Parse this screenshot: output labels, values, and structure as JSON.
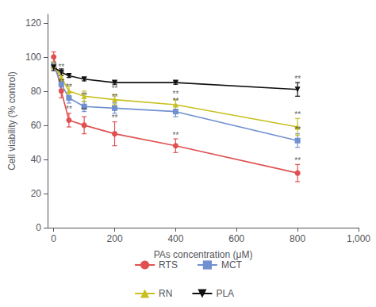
{
  "chart_data": {
    "type": "line",
    "xlabel": "PAs concentration (μM)",
    "ylabel": "Cell viability (% control)",
    "x": [
      0,
      25,
      50,
      100,
      200,
      400,
      800
    ],
    "series": [
      {
        "name": "RTS",
        "color": "#e05050",
        "marker": "circle",
        "values": [
          100,
          80,
          63,
          60,
          55,
          48,
          32
        ],
        "yerr": [
          3,
          4,
          4,
          5,
          7,
          4,
          5
        ]
      },
      {
        "name": "MCT",
        "color": "#7090d0",
        "marker": "square",
        "values": [
          95,
          84,
          76,
          71,
          70,
          68,
          51
        ],
        "yerr": [
          2,
          3,
          3,
          3,
          3,
          3,
          4
        ]
      },
      {
        "name": "RN",
        "color": "#c8c020",
        "marker": "triangle",
        "values": [
          95,
          88,
          80,
          77,
          75,
          72,
          59
        ],
        "yerr": [
          2,
          2,
          3,
          3,
          3,
          3,
          5
        ]
      },
      {
        "name": "PLA",
        "color": "#111111",
        "marker": "triangle_down",
        "values": [
          94,
          91,
          89,
          87,
          85,
          85,
          81
        ],
        "yerr": [
          2,
          2,
          1,
          1,
          1,
          1,
          4
        ]
      }
    ],
    "annotations": [
      {
        "text": "**",
        "x": 25,
        "y": 83
      },
      {
        "text": "**",
        "x": 50,
        "y": 67
      },
      {
        "text": "**",
        "x": 100,
        "y": 66
      },
      {
        "text": "**",
        "x": 200,
        "y": 62
      },
      {
        "text": "**",
        "x": 400,
        "y": 52
      },
      {
        "text": "**",
        "x": 800,
        "y": 37
      },
      {
        "text": "**",
        "x": 25,
        "y": 88
      },
      {
        "text": "**",
        "x": 50,
        "y": 80
      },
      {
        "text": "**",
        "x": 100,
        "y": 75
      },
      {
        "text": "**",
        "x": 200,
        "y": 74
      },
      {
        "text": "**",
        "x": 400,
        "y": 72
      },
      {
        "text": "**",
        "x": 800,
        "y": 55
      },
      {
        "text": "**",
        "x": 25,
        "y": 92
      },
      {
        "text": "**",
        "x": 200,
        "y": 79
      },
      {
        "text": "**",
        "x": 400,
        "y": 76
      },
      {
        "text": "**",
        "x": 800,
        "y": 64
      },
      {
        "text": "**",
        "x": 800,
        "y": 85
      }
    ],
    "xlim": [
      -20,
      1000
    ],
    "xticks": [
      0,
      200,
      400,
      600,
      800,
      1000
    ],
    "ylim": [
      0,
      125
    ],
    "yticks": [
      0,
      20,
      40,
      60,
      80,
      100,
      120
    ],
    "grid": false,
    "legend": "bottom"
  }
}
